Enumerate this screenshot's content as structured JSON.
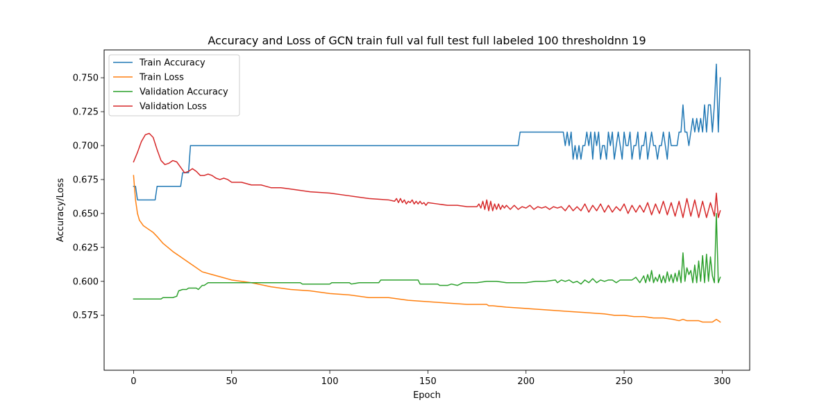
{
  "chart_data": {
    "type": "line",
    "title": "Accuracy and Loss of GCN train full val full test full labeled 100 thresholdnn 19",
    "xlabel": "Epoch",
    "ylabel": "Accuracy/Loss",
    "xlim": [
      -15,
      314
    ],
    "ylim": [
      0.5345,
      0.7705
    ],
    "xticks": [
      0,
      50,
      100,
      150,
      200,
      250,
      300
    ],
    "xtick_labels": [
      "0",
      "50",
      "100",
      "150",
      "200",
      "250",
      "300"
    ],
    "yticks": [
      0.575,
      0.6,
      0.625,
      0.65,
      0.675,
      0.7,
      0.725,
      0.75
    ],
    "ytick_labels": [
      "0.575",
      "0.600",
      "0.625",
      "0.650",
      "0.675",
      "0.700",
      "0.725",
      "0.750"
    ],
    "grid": false,
    "legend_position": "upper-left",
    "series": [
      {
        "name": "Train Accuracy",
        "color": "#1f77b4",
        "x": [
          0,
          1,
          2,
          3,
          5,
          8,
          11,
          12,
          13,
          15,
          20,
          24,
          25,
          26,
          28,
          29,
          30,
          50,
          100,
          150,
          196,
          197,
          198,
          200,
          210,
          219,
          220,
          221,
          222,
          223,
          224,
          225,
          226,
          227,
          228,
          229,
          230,
          231,
          232,
          233,
          234,
          235,
          236,
          237,
          238,
          239,
          240,
          241,
          242,
          243,
          244,
          245,
          246,
          247,
          248,
          249,
          250,
          251,
          252,
          253,
          254,
          255,
          256,
          257,
          258,
          259,
          260,
          261,
          262,
          263,
          264,
          265,
          266,
          267,
          268,
          269,
          270,
          271,
          272,
          273,
          274,
          275,
          276,
          277,
          278,
          279,
          280,
          281,
          282,
          283,
          284,
          285,
          286,
          287,
          288,
          289,
          290,
          291,
          292,
          293,
          294,
          295,
          296,
          297,
          298,
          299
        ],
        "y": [
          0.67,
          0.67,
          0.66,
          0.66,
          0.66,
          0.66,
          0.66,
          0.67,
          0.67,
          0.67,
          0.67,
          0.67,
          0.68,
          0.68,
          0.68,
          0.7,
          0.7,
          0.7,
          0.7,
          0.7,
          0.7,
          0.71,
          0.71,
          0.71,
          0.71,
          0.71,
          0.7,
          0.71,
          0.7,
          0.71,
          0.69,
          0.7,
          0.69,
          0.7,
          0.69,
          0.7,
          0.7,
          0.71,
          0.7,
          0.71,
          0.69,
          0.71,
          0.7,
          0.71,
          0.69,
          0.7,
          0.7,
          0.69,
          0.71,
          0.7,
          0.71,
          0.69,
          0.7,
          0.71,
          0.7,
          0.69,
          0.71,
          0.7,
          0.7,
          0.71,
          0.69,
          0.7,
          0.7,
          0.71,
          0.69,
          0.7,
          0.7,
          0.71,
          0.69,
          0.7,
          0.71,
          0.7,
          0.7,
          0.69,
          0.7,
          0.7,
          0.71,
          0.7,
          0.69,
          0.71,
          0.7,
          0.7,
          0.7,
          0.7,
          0.71,
          0.71,
          0.73,
          0.71,
          0.71,
          0.7,
          0.71,
          0.72,
          0.71,
          0.72,
          0.71,
          0.72,
          0.71,
          0.73,
          0.71,
          0.73,
          0.73,
          0.71,
          0.73,
          0.76,
          0.71,
          0.75
        ]
      },
      {
        "name": "Train Loss",
        "color": "#ff7f0e",
        "x": [
          0,
          1,
          2,
          3,
          4,
          5,
          7,
          10,
          12,
          15,
          20,
          25,
          30,
          35,
          40,
          45,
          50,
          55,
          60,
          70,
          80,
          90,
          100,
          110,
          120,
          130,
          140,
          150,
          160,
          170,
          180,
          181,
          183,
          190,
          200,
          210,
          220,
          230,
          240,
          245,
          250,
          255,
          260,
          265,
          270,
          275,
          278,
          280,
          282,
          285,
          288,
          290,
          292,
          295,
          297,
          298,
          299
        ],
        "y": [
          0.678,
          0.66,
          0.65,
          0.645,
          0.643,
          0.641,
          0.639,
          0.636,
          0.633,
          0.628,
          0.622,
          0.617,
          0.612,
          0.607,
          0.605,
          0.603,
          0.601,
          0.6,
          0.599,
          0.596,
          0.594,
          0.593,
          0.591,
          0.59,
          0.588,
          0.588,
          0.586,
          0.585,
          0.584,
          0.583,
          0.583,
          0.582,
          0.582,
          0.581,
          0.58,
          0.579,
          0.578,
          0.577,
          0.576,
          0.575,
          0.575,
          0.574,
          0.574,
          0.573,
          0.573,
          0.572,
          0.571,
          0.572,
          0.571,
          0.571,
          0.571,
          0.57,
          0.57,
          0.57,
          0.572,
          0.571,
          0.57
        ]
      },
      {
        "name": "Validation Accuracy",
        "color": "#2ca02c",
        "x": [
          0,
          5,
          10,
          14,
          15,
          20,
          22,
          23,
          25,
          26,
          27,
          28,
          29,
          30,
          32,
          33,
          35,
          36,
          37,
          38,
          40,
          45,
          50,
          60,
          70,
          80,
          85,
          86,
          90,
          100,
          101,
          105,
          110,
          111,
          115,
          120,
          125,
          126,
          130,
          135,
          140,
          145,
          146,
          150,
          155,
          156,
          160,
          162,
          165,
          168,
          170,
          175,
          180,
          185,
          190,
          195,
          200,
          205,
          210,
          215,
          216,
          218,
          220,
          222,
          224,
          226,
          228,
          230,
          232,
          234,
          236,
          238,
          240,
          242,
          244,
          246,
          248,
          250,
          252,
          254,
          256,
          258,
          260,
          261,
          262,
          263,
          264,
          265,
          266,
          267,
          268,
          269,
          270,
          271,
          272,
          273,
          274,
          275,
          276,
          277,
          278,
          279,
          280,
          281,
          282,
          283,
          284,
          285,
          286,
          287,
          288,
          289,
          290,
          291,
          292,
          293,
          294,
          295,
          296,
          297,
          298,
          299
        ],
        "y": [
          0.587,
          0.587,
          0.587,
          0.587,
          0.588,
          0.588,
          0.589,
          0.593,
          0.594,
          0.594,
          0.594,
          0.595,
          0.595,
          0.595,
          0.595,
          0.594,
          0.597,
          0.597,
          0.598,
          0.599,
          0.599,
          0.599,
          0.599,
          0.599,
          0.599,
          0.599,
          0.599,
          0.598,
          0.598,
          0.598,
          0.599,
          0.599,
          0.599,
          0.598,
          0.599,
          0.599,
          0.599,
          0.601,
          0.601,
          0.601,
          0.601,
          0.601,
          0.598,
          0.598,
          0.598,
          0.597,
          0.597,
          0.598,
          0.597,
          0.599,
          0.599,
          0.599,
          0.6,
          0.6,
          0.599,
          0.599,
          0.599,
          0.6,
          0.6,
          0.601,
          0.599,
          0.601,
          0.6,
          0.601,
          0.599,
          0.6,
          0.598,
          0.601,
          0.599,
          0.602,
          0.599,
          0.601,
          0.6,
          0.601,
          0.601,
          0.599,
          0.601,
          0.601,
          0.601,
          0.601,
          0.603,
          0.599,
          0.604,
          0.599,
          0.605,
          0.6,
          0.608,
          0.599,
          0.603,
          0.6,
          0.605,
          0.599,
          0.604,
          0.599,
          0.607,
          0.6,
          0.605,
          0.599,
          0.606,
          0.6,
          0.608,
          0.599,
          0.621,
          0.6,
          0.61,
          0.605,
          0.608,
          0.599,
          0.612,
          0.599,
          0.615,
          0.6,
          0.619,
          0.599,
          0.62,
          0.6,
          0.618,
          0.604,
          0.599,
          0.65,
          0.599,
          0.603
        ]
      },
      {
        "name": "Validation Loss",
        "color": "#d62728",
        "x": [
          0,
          2,
          4,
          6,
          8,
          10,
          12,
          14,
          16,
          18,
          20,
          22,
          24,
          26,
          28,
          30,
          32,
          34,
          36,
          38,
          40,
          42,
          44,
          46,
          48,
          50,
          55,
          60,
          65,
          70,
          75,
          80,
          90,
          100,
          110,
          120,
          130,
          133,
          134,
          135,
          136,
          137,
          138,
          139,
          140,
          141,
          142,
          143,
          144,
          145,
          146,
          147,
          148,
          149,
          150,
          155,
          160,
          165,
          170,
          175,
          176,
          177,
          178,
          179,
          180,
          181,
          182,
          183,
          184,
          185,
          186,
          187,
          188,
          189,
          190,
          192,
          194,
          196,
          198,
          200,
          202,
          204,
          206,
          208,
          210,
          212,
          214,
          216,
          218,
          220,
          222,
          224,
          226,
          228,
          230,
          232,
          234,
          236,
          238,
          240,
          242,
          244,
          246,
          248,
          250,
          252,
          254,
          256,
          258,
          260,
          262,
          264,
          266,
          268,
          270,
          272,
          274,
          276,
          278,
          280,
          282,
          284,
          286,
          288,
          290,
          292,
          294,
          296,
          297,
          298,
          299
        ],
        "y": [
          0.688,
          0.695,
          0.703,
          0.708,
          0.709,
          0.706,
          0.697,
          0.689,
          0.686,
          0.687,
          0.689,
          0.688,
          0.684,
          0.68,
          0.681,
          0.683,
          0.681,
          0.678,
          0.678,
          0.679,
          0.678,
          0.676,
          0.675,
          0.676,
          0.675,
          0.673,
          0.673,
          0.671,
          0.671,
          0.669,
          0.669,
          0.668,
          0.666,
          0.665,
          0.663,
          0.661,
          0.66,
          0.659,
          0.661,
          0.658,
          0.661,
          0.658,
          0.66,
          0.657,
          0.659,
          0.658,
          0.66,
          0.657,
          0.659,
          0.657,
          0.659,
          0.657,
          0.658,
          0.656,
          0.658,
          0.657,
          0.656,
          0.656,
          0.655,
          0.655,
          0.657,
          0.654,
          0.659,
          0.653,
          0.66,
          0.652,
          0.659,
          0.652,
          0.657,
          0.653,
          0.657,
          0.653,
          0.656,
          0.654,
          0.656,
          0.653,
          0.656,
          0.653,
          0.655,
          0.654,
          0.656,
          0.653,
          0.655,
          0.654,
          0.655,
          0.653,
          0.655,
          0.654,
          0.655,
          0.652,
          0.656,
          0.652,
          0.655,
          0.652,
          0.657,
          0.651,
          0.656,
          0.652,
          0.657,
          0.651,
          0.656,
          0.651,
          0.655,
          0.652,
          0.657,
          0.65,
          0.656,
          0.651,
          0.656,
          0.651,
          0.658,
          0.649,
          0.657,
          0.65,
          0.659,
          0.649,
          0.658,
          0.648,
          0.659,
          0.647,
          0.661,
          0.648,
          0.66,
          0.647,
          0.659,
          0.647,
          0.658,
          0.648,
          0.665,
          0.647,
          0.652
        ]
      }
    ]
  }
}
